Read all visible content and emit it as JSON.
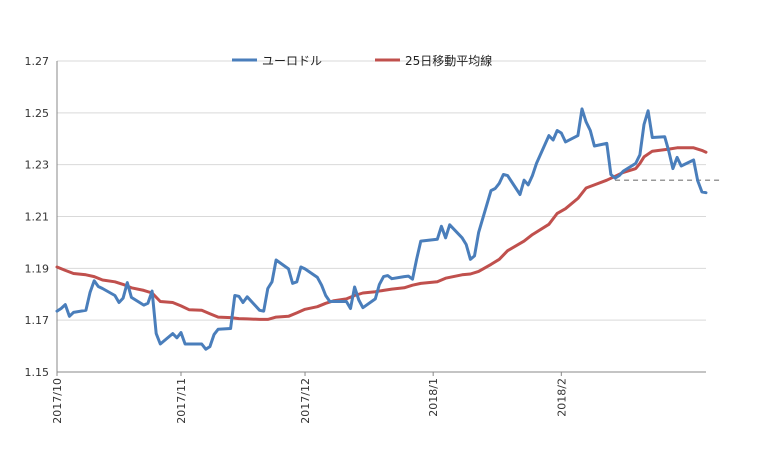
{
  "chart_data": {
    "type": "line",
    "title": "",
    "xlabel": "",
    "ylabel": "",
    "ylim": [
      1.15,
      1.27
    ],
    "y_ticks": [
      "1.15",
      "1.17",
      "1.19",
      "1.21",
      "1.23",
      "1.25",
      "1.27"
    ],
    "x_tick_labels": [
      {
        "label": "2017/10",
        "date": "2017-10-02"
      },
      {
        "label": "2017/11",
        "date": "2017-11-01"
      },
      {
        "label": "2017/12",
        "date": "2017-12-01"
      },
      {
        "label": "2018/1",
        "date": "2018-01-01"
      },
      {
        "label": "2018/2",
        "date": "2018-02-01"
      }
    ],
    "grid": "horizontal",
    "legend_position": "top",
    "series": [
      {
        "name": "ユーロドル",
        "color": "#4a7ebb",
        "points": [
          [
            "2017-10-02",
            1.1735
          ],
          [
            "2017-10-03",
            1.1745
          ],
          [
            "2017-10-04",
            1.176
          ],
          [
            "2017-10-05",
            1.1715
          ],
          [
            "2017-10-06",
            1.173
          ],
          [
            "2017-10-09",
            1.1738
          ],
          [
            "2017-10-10",
            1.1808
          ],
          [
            "2017-10-11",
            1.1852
          ],
          [
            "2017-10-12",
            1.183
          ],
          [
            "2017-10-13",
            1.1822
          ],
          [
            "2017-10-16",
            1.1795
          ],
          [
            "2017-10-17",
            1.1768
          ],
          [
            "2017-10-18",
            1.1785
          ],
          [
            "2017-10-19",
            1.1845
          ],
          [
            "2017-10-20",
            1.1788
          ],
          [
            "2017-10-23",
            1.1758
          ],
          [
            "2017-10-24",
            1.1765
          ],
          [
            "2017-10-25",
            1.1812
          ],
          [
            "2017-10-26",
            1.1648
          ],
          [
            "2017-10-27",
            1.1608
          ],
          [
            "2017-10-30",
            1.1648
          ],
          [
            "2017-10-31",
            1.1632
          ],
          [
            "2017-11-01",
            1.1652
          ],
          [
            "2017-11-02",
            1.1608
          ],
          [
            "2017-11-03",
            1.1608
          ],
          [
            "2017-11-06",
            1.1608
          ],
          [
            "2017-11-07",
            1.1588
          ],
          [
            "2017-11-08",
            1.1598
          ],
          [
            "2017-11-09",
            1.1645
          ],
          [
            "2017-11-10",
            1.1665
          ],
          [
            "2017-11-13",
            1.1668
          ],
          [
            "2017-11-14",
            1.1795
          ],
          [
            "2017-11-15",
            1.1792
          ],
          [
            "2017-11-16",
            1.1768
          ],
          [
            "2017-11-17",
            1.179
          ],
          [
            "2017-11-20",
            1.1738
          ],
          [
            "2017-11-21",
            1.1735
          ],
          [
            "2017-11-22",
            1.1822
          ],
          [
            "2017-11-23",
            1.1848
          ],
          [
            "2017-11-24",
            1.1932
          ],
          [
            "2017-11-27",
            1.1898
          ],
          [
            "2017-11-28",
            1.1842
          ],
          [
            "2017-11-29",
            1.1848
          ],
          [
            "2017-11-30",
            1.1905
          ],
          [
            "2017-12-01",
            1.1898
          ],
          [
            "2017-12-04",
            1.1865
          ],
          [
            "2017-12-05",
            1.1835
          ],
          [
            "2017-12-06",
            1.1795
          ],
          [
            "2017-12-07",
            1.1772
          ],
          [
            "2017-12-08",
            1.1772
          ],
          [
            "2017-12-11",
            1.1772
          ],
          [
            "2017-12-12",
            1.1745
          ],
          [
            "2017-12-13",
            1.1828
          ],
          [
            "2017-12-14",
            1.1778
          ],
          [
            "2017-12-15",
            1.1748
          ],
          [
            "2017-12-18",
            1.1782
          ],
          [
            "2017-12-19",
            1.1838
          ],
          [
            "2017-12-20",
            1.1868
          ],
          [
            "2017-12-21",
            1.1872
          ],
          [
            "2017-12-22",
            1.186
          ],
          [
            "2017-12-25",
            1.1868
          ],
          [
            "2017-12-26",
            1.187
          ],
          [
            "2017-12-27",
            1.1858
          ],
          [
            "2017-12-28",
            1.1935
          ],
          [
            "2017-12-29",
            1.2005
          ],
          [
            "2018-01-02",
            1.2012
          ],
          [
            "2018-01-03",
            1.2062
          ],
          [
            "2018-01-04",
            1.2018
          ],
          [
            "2018-01-05",
            1.2068
          ],
          [
            "2018-01-08",
            1.2018
          ],
          [
            "2018-01-09",
            1.1992
          ],
          [
            "2018-01-10",
            1.1935
          ],
          [
            "2018-01-11",
            1.1948
          ],
          [
            "2018-01-12",
            1.2038
          ],
          [
            "2018-01-15",
            1.22
          ],
          [
            "2018-01-16",
            1.2208
          ],
          [
            "2018-01-17",
            1.2228
          ],
          [
            "2018-01-18",
            1.2262
          ],
          [
            "2018-01-19",
            1.2258
          ],
          [
            "2018-01-22",
            1.2185
          ],
          [
            "2018-01-23",
            1.224
          ],
          [
            "2018-01-24",
            1.2222
          ],
          [
            "2018-01-25",
            1.2258
          ],
          [
            "2018-01-26",
            1.2305
          ],
          [
            "2018-01-29",
            1.2412
          ],
          [
            "2018-01-30",
            1.2395
          ],
          [
            "2018-01-31",
            1.2432
          ],
          [
            "2018-02-01",
            1.2422
          ],
          [
            "2018-02-02",
            1.2388
          ],
          [
            "2018-02-05",
            1.2412
          ],
          [
            "2018-02-06",
            1.2515
          ],
          [
            "2018-02-07",
            1.2465
          ],
          [
            "2018-02-08",
            1.2432
          ],
          [
            "2018-02-09",
            1.2372
          ],
          [
            "2018-02-12",
            1.2382
          ],
          [
            "2018-02-13",
            1.2262
          ],
          [
            "2018-02-14",
            1.2248
          ],
          [
            "2018-02-15",
            1.2258
          ],
          [
            "2018-02-16",
            1.2275
          ],
          [
            "2018-02-19",
            1.2305
          ],
          [
            "2018-02-20",
            1.2338
          ],
          [
            "2018-02-21",
            1.2455
          ],
          [
            "2018-02-22",
            1.2508
          ],
          [
            "2018-02-23",
            1.2405
          ],
          [
            "2018-02-26",
            1.2408
          ],
          [
            "2018-02-27",
            1.2352
          ],
          [
            "2018-02-28",
            1.2285
          ],
          [
            "2018-03-01",
            1.2328
          ],
          [
            "2018-03-02",
            1.2295
          ],
          [
            "2018-03-05",
            1.2318
          ],
          [
            "2018-03-06",
            1.2238
          ],
          [
            "2018-03-07",
            1.2195
          ],
          [
            "2018-03-08",
            1.2192
          ]
        ]
      },
      {
        "name": "25日移動平均線",
        "color": "#c0504d",
        "points": [
          [
            "2017-10-02",
            1.1905
          ],
          [
            "2017-10-04",
            1.1892
          ],
          [
            "2017-10-06",
            1.188
          ],
          [
            "2017-10-09",
            1.1875
          ],
          [
            "2017-10-11",
            1.1868
          ],
          [
            "2017-10-13",
            1.1855
          ],
          [
            "2017-10-16",
            1.1848
          ],
          [
            "2017-10-18",
            1.1838
          ],
          [
            "2017-10-20",
            1.1825
          ],
          [
            "2017-10-23",
            1.1815
          ],
          [
            "2017-10-25",
            1.1805
          ],
          [
            "2017-10-27",
            1.1772
          ],
          [
            "2017-10-30",
            1.1768
          ],
          [
            "2017-11-01",
            1.1755
          ],
          [
            "2017-11-03",
            1.174
          ],
          [
            "2017-11-06",
            1.1738
          ],
          [
            "2017-11-08",
            1.1725
          ],
          [
            "2017-11-10",
            1.1712
          ],
          [
            "2017-11-13",
            1.171
          ],
          [
            "2017-11-15",
            1.1706
          ],
          [
            "2017-11-17",
            1.1705
          ],
          [
            "2017-11-20",
            1.1703
          ],
          [
            "2017-11-22",
            1.1703
          ],
          [
            "2017-11-24",
            1.1712
          ],
          [
            "2017-11-27",
            1.1715
          ],
          [
            "2017-11-29",
            1.1728
          ],
          [
            "2017-12-01",
            1.1742
          ],
          [
            "2017-12-04",
            1.1752
          ],
          [
            "2017-12-06",
            1.1765
          ],
          [
            "2017-12-08",
            1.1775
          ],
          [
            "2017-12-11",
            1.1782
          ],
          [
            "2017-12-13",
            1.1795
          ],
          [
            "2017-12-15",
            1.1805
          ],
          [
            "2017-12-18",
            1.181
          ],
          [
            "2017-12-20",
            1.1815
          ],
          [
            "2017-12-22",
            1.182
          ],
          [
            "2017-12-25",
            1.1825
          ],
          [
            "2017-12-27",
            1.1835
          ],
          [
            "2017-12-29",
            1.1842
          ],
          [
            "2018-01-02",
            1.1848
          ],
          [
            "2018-01-04",
            1.1862
          ],
          [
            "2018-01-08",
            1.1875
          ],
          [
            "2018-01-10",
            1.1878
          ],
          [
            "2018-01-12",
            1.1888
          ],
          [
            "2018-01-15",
            1.1915
          ],
          [
            "2018-01-17",
            1.1935
          ],
          [
            "2018-01-19",
            1.1968
          ],
          [
            "2018-01-23",
            1.2005
          ],
          [
            "2018-01-25",
            1.203
          ],
          [
            "2018-01-29",
            1.207
          ],
          [
            "2018-01-31",
            1.2112
          ],
          [
            "2018-02-02",
            1.213
          ],
          [
            "2018-02-05",
            1.217
          ],
          [
            "2018-02-07",
            1.221
          ],
          [
            "2018-02-09",
            1.2222
          ],
          [
            "2018-02-12",
            1.224
          ],
          [
            "2018-02-14",
            1.2255
          ],
          [
            "2018-02-16",
            1.227
          ],
          [
            "2018-02-19",
            1.2285
          ],
          [
            "2018-02-20",
            1.2305
          ],
          [
            "2018-02-21",
            1.233
          ],
          [
            "2018-02-23",
            1.2352
          ],
          [
            "2018-02-27",
            1.236
          ],
          [
            "2018-03-01",
            1.2365
          ],
          [
            "2018-03-05",
            1.2365
          ],
          [
            "2018-03-07",
            1.2355
          ],
          [
            "2018-03-08",
            1.2348
          ]
        ]
      }
    ],
    "reference_line": {
      "style": "dashed",
      "color": "#999999",
      "y": 1.224,
      "x_from": "2018-02-14",
      "x_to": "2018-03-08"
    }
  }
}
